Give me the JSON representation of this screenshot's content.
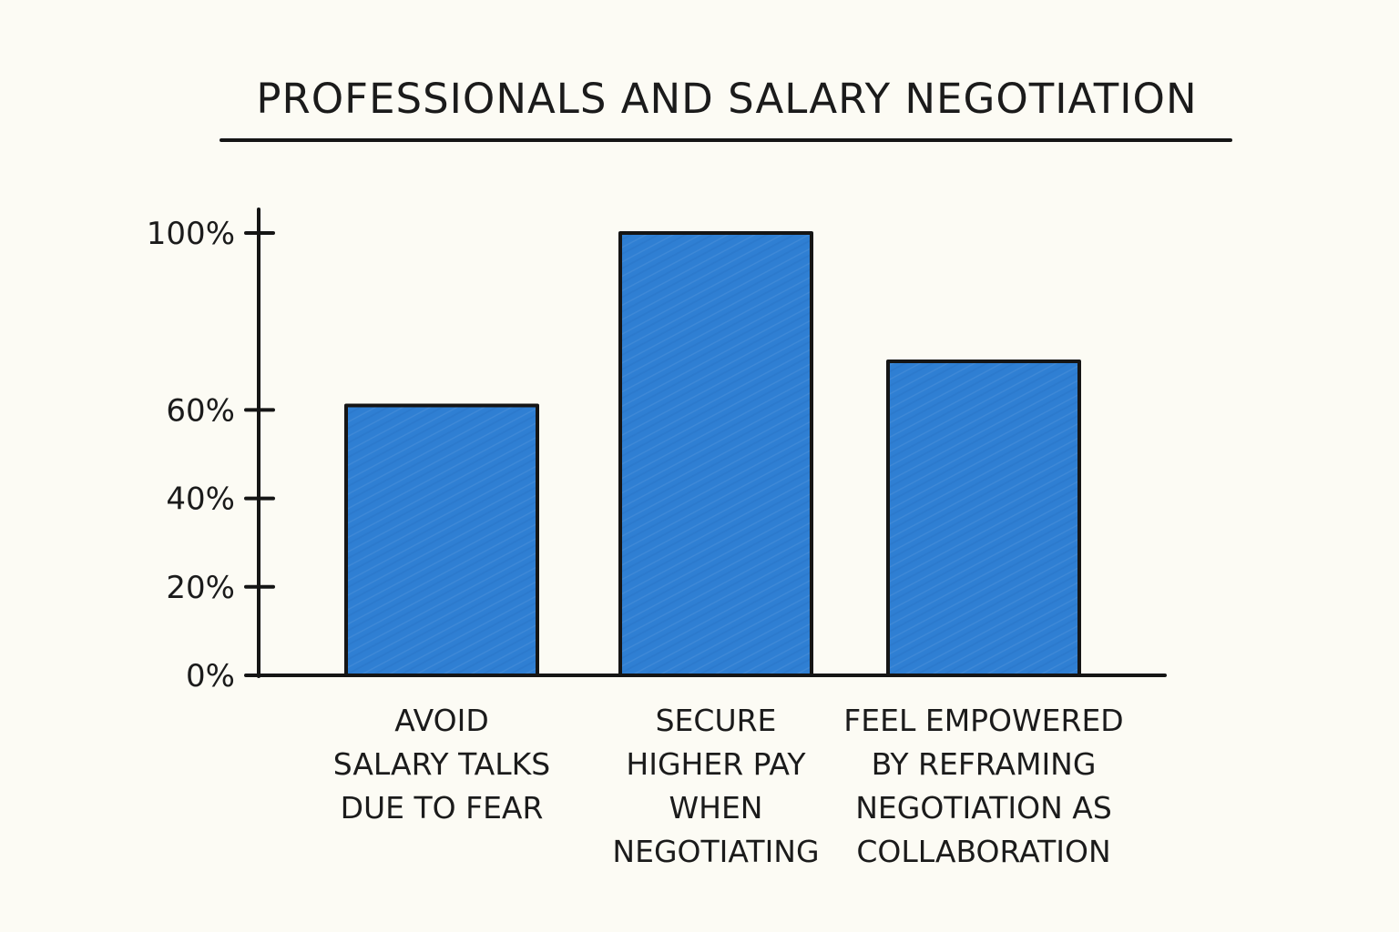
{
  "chart_data": {
    "type": "bar",
    "title": "PROFESSIONALS AND SALARY NEGOTIATION",
    "categories": [
      [
        "AVOID",
        "SALARY TALKS",
        "DUE TO FEAR"
      ],
      [
        "SECURE",
        "HIGHER PAY",
        "WHEN",
        "NEGOTIATING"
      ],
      [
        "FEEL EMPOWERED",
        "BY REFRAMING",
        "NEGOTIATION AS",
        "COLLABORATION"
      ]
    ],
    "values": [
      61,
      100,
      71
    ],
    "y_ticks": [
      {
        "value": 0,
        "label": "0%"
      },
      {
        "value": 20,
        "label": "20%"
      },
      {
        "value": 40,
        "label": "40%"
      },
      {
        "value": 60,
        "label": "60%"
      },
      {
        "value": 100,
        "label": "100%"
      }
    ],
    "ylim": [
      0,
      100
    ],
    "xlabel": "",
    "ylabel": "",
    "grid": false,
    "colors": {
      "bar_fill": "#2f7fd3",
      "bar_stroke": "#151515",
      "axis": "#151515",
      "background": "#fcfbf4"
    }
  }
}
